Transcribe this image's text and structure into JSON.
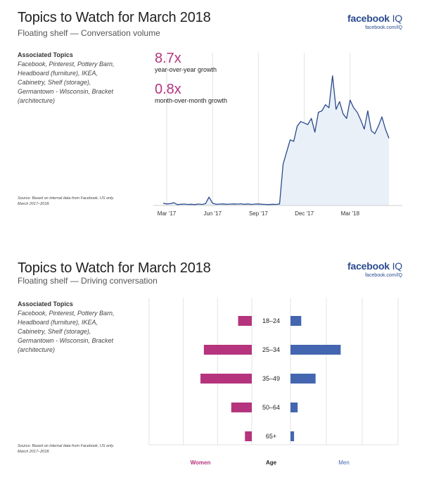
{
  "logo": {
    "brand": "facebook",
    "product": "IQ",
    "url": "facebook.com/IQ"
  },
  "associated": {
    "heading": "Associated Topics",
    "lines": [
      "Facebook, Pinterest, Pottery Barn,",
      "Headboard (furniture), IKEA,",
      "Cabinetry, Shelf (storage),",
      "Germantown - Wisconsin, Bracket",
      "(architecture)"
    ]
  },
  "source": {
    "line1": "Source: Based on internal data from Facebook, US only.",
    "line2": "March 2017–2018."
  },
  "panel1": {
    "title": "Topics to Watch for March 2018",
    "subtitle": "Floating shelf — Conversation volume",
    "stats": [
      {
        "value": "8.7x",
        "label": "year-over-year growth"
      },
      {
        "value": "0.8x",
        "label": "month-over-month growth"
      }
    ]
  },
  "panel2": {
    "title": "Topics to Watch for March 2018",
    "subtitle": "Floating shelf — Driving conversation"
  },
  "colors": {
    "women": "#b5347d",
    "men": "#4466b0",
    "line": "#2a4a8f",
    "area": "#eaf0f7",
    "grid": "#e3e3e3"
  },
  "chart_data": [
    {
      "type": "area",
      "x_ticks": [
        "Mar '17",
        "Jun '17",
        "Sep '17",
        "Dec '17",
        "Mar '18"
      ],
      "tick_index": [
        1,
        14,
        27,
        40,
        53
      ],
      "values": [
        1.5,
        1.0,
        1.2,
        1.8,
        0.6,
        0.8,
        0.9,
        0.7,
        0.8,
        0.6,
        0.9,
        0.7,
        1.2,
        5.5,
        1.5,
        0.8,
        0.9,
        1.0,
        0.8,
        0.9,
        1.0,
        0.9,
        1.1,
        0.8,
        1.0,
        0.7,
        0.9,
        1.0,
        0.8,
        0.7,
        0.6,
        0.8,
        0.7,
        1.0,
        27,
        35,
        43,
        42,
        52,
        55,
        54,
        53,
        57,
        48,
        61,
        62,
        66,
        64,
        85,
        63,
        68,
        60,
        57,
        69,
        64,
        61,
        56,
        50,
        62,
        49,
        47,
        52,
        58,
        50,
        44
      ],
      "ylim": [
        0,
        100
      ]
    },
    {
      "type": "bar",
      "categories": [
        "18–24",
        "25–34",
        "35–49",
        "50–64",
        "65+"
      ],
      "series": [
        {
          "name": "Women",
          "values": [
            4,
            14,
            15,
            6,
            2
          ]
        },
        {
          "name": "Men",
          "values": [
            3,
            14,
            7,
            2,
            1
          ]
        }
      ],
      "xlabel_left": "Women",
      "xlabel_center": "Age",
      "xlabel_right": "Men",
      "xlim": [
        0,
        30
      ]
    }
  ]
}
